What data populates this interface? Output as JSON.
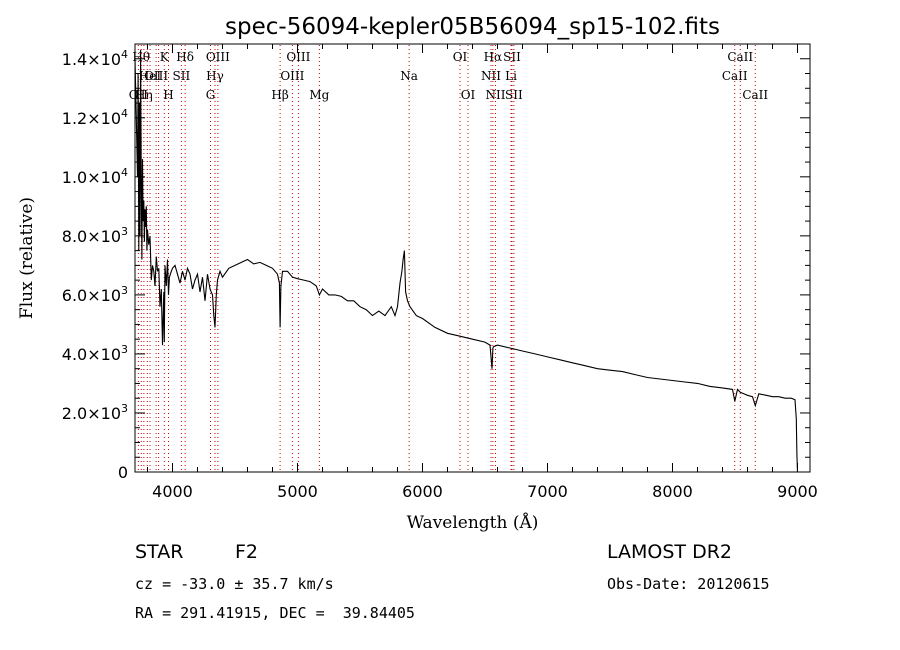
{
  "chart_data": {
    "type": "line",
    "title": "spec-56094-kepler05B56094_sp15-102.fits",
    "xlabel": "Wavelength (Å)",
    "ylabel": "Flux (relative)",
    "xlim": [
      3700,
      9100
    ],
    "ylim": [
      0,
      14500
    ],
    "x_ticks": [
      {
        "value": 4000,
        "label": "4000"
      },
      {
        "value": 5000,
        "label": "5000"
      },
      {
        "value": 6000,
        "label": "6000"
      },
      {
        "value": 7000,
        "label": "7000"
      },
      {
        "value": 8000,
        "label": "8000"
      },
      {
        "value": 9000,
        "label": "9000"
      }
    ],
    "y_ticks": [
      {
        "value": 0,
        "mant": "0",
        "exp": ""
      },
      {
        "value": 2000,
        "mant": "2.0×10",
        "exp": "3"
      },
      {
        "value": 4000,
        "mant": "4.0×10",
        "exp": "3"
      },
      {
        "value": 6000,
        "mant": "6.0×10",
        "exp": "3"
      },
      {
        "value": 8000,
        "mant": "8.0×10",
        "exp": "3"
      },
      {
        "value": 10000,
        "mant": "1.0×10",
        "exp": "4"
      },
      {
        "value": 12000,
        "mant": "1.2×10",
        "exp": "4"
      },
      {
        "value": 14000,
        "mant": "1.4×10",
        "exp": "4"
      }
    ],
    "line_color": "#000000",
    "marker_color": "#cc0000",
    "grid": false,
    "series": [
      {
        "x": [
          3700,
          3710,
          3720,
          3725,
          3730,
          3735,
          3740,
          3745,
          3750,
          3755,
          3760,
          3765,
          3770,
          3775,
          3780,
          3785,
          3790,
          3795,
          3800,
          3810,
          3820,
          3830,
          3840,
          3850,
          3860,
          3870,
          3880,
          3890,
          3900,
          3910,
          3920,
          3930,
          3934,
          3940,
          3950,
          3960,
          3968,
          3975,
          3990,
          4000,
          4020,
          4040,
          4060,
          4080,
          4100,
          4120,
          4140,
          4160,
          4180,
          4200,
          4220,
          4240,
          4260,
          4280,
          4300,
          4320,
          4330,
          4340,
          4350,
          4360,
          4380,
          4400,
          4450,
          4500,
          4550,
          4600,
          4650,
          4700,
          4750,
          4800,
          4840,
          4855,
          4861,
          4867,
          4880,
          4920,
          4960,
          5000,
          5050,
          5100,
          5150,
          5175,
          5200,
          5250,
          5300,
          5350,
          5400,
          5450,
          5500,
          5550,
          5600,
          5650,
          5700,
          5750,
          5780,
          5800,
          5820,
          5835,
          5845,
          5855,
          5865,
          5880,
          5900,
          5950,
          6000,
          6100,
          6200,
          6300,
          6400,
          6500,
          6540,
          6556,
          6563,
          6570,
          6600,
          6700,
          6800,
          6900,
          7000,
          7100,
          7200,
          7300,
          7400,
          7500,
          7600,
          7700,
          7800,
          7900,
          8000,
          8100,
          8200,
          8300,
          8400,
          8480,
          8498,
          8520,
          8542,
          8570,
          8600,
          8640,
          8662,
          8690,
          8750,
          8800,
          8850,
          8900,
          8950,
          8980,
          8990,
          8995,
          9000
        ],
        "y": [
          14000,
          12000,
          10000,
          13500,
          7500,
          12500,
          8000,
          14300,
          9500,
          7200,
          10600,
          8500,
          9200,
          7800,
          8900,
          8300,
          9000,
          7500,
          8200,
          7700,
          8000,
          6500,
          7000,
          6800,
          6300,
          7300,
          6800,
          6900,
          5600,
          6200,
          4300,
          6100,
          4400,
          7000,
          6300,
          7200,
          6000,
          6600,
          6800,
          6900,
          7000,
          6700,
          6400,
          6800,
          6500,
          6900,
          6700,
          6200,
          6500,
          6700,
          6100,
          6600,
          5800,
          6700,
          6200,
          6000,
          5300,
          4900,
          6000,
          6500,
          6800,
          6600,
          6900,
          7000,
          7100,
          7200,
          7050,
          7100,
          7000,
          6900,
          6700,
          6400,
          4900,
          6300,
          6800,
          6800,
          6600,
          6550,
          6500,
          6450,
          6300,
          6000,
          6200,
          6000,
          6000,
          5950,
          5800,
          5800,
          5600,
          5500,
          5300,
          5450,
          5300,
          5600,
          5300,
          5600,
          6400,
          6800,
          7200,
          7500,
          6100,
          5800,
          5600,
          5300,
          5200,
          4900,
          4700,
          4600,
          4500,
          4400,
          4300,
          3500,
          4200,
          4250,
          4300,
          4200,
          4100,
          4000,
          3900,
          3800,
          3700,
          3600,
          3500,
          3450,
          3400,
          3300,
          3200,
          3150,
          3100,
          3050,
          3000,
          2900,
          2850,
          2800,
          2400,
          2800,
          2700,
          2650,
          2600,
          2550,
          2250,
          2650,
          2600,
          2550,
          2550,
          2500,
          2500,
          2450,
          1800,
          600,
          0
        ]
      }
    ],
    "line_markers": [
      {
        "wl": 3727,
        "label": "OII",
        "row": 2
      },
      {
        "wl": 3750,
        "label": "Hθ",
        "row": 0
      },
      {
        "wl": 3771,
        "label": "Hη",
        "row": 2
      },
      {
        "wl": 3798,
        "label": "",
        "row": 0
      },
      {
        "wl": 3820,
        "label": "HeI",
        "row": 1
      },
      {
        "wl": 3869,
        "label": "OIII",
        "row": 1
      },
      {
        "wl": 3889,
        "label": "",
        "row": 0
      },
      {
        "wl": 3934,
        "label": "K",
        "row": 0
      },
      {
        "wl": 3968,
        "label": "H",
        "row": 2
      },
      {
        "wl": 4071,
        "label": "SII",
        "row": 1
      },
      {
        "wl": 4101,
        "label": "Hδ",
        "row": 0
      },
      {
        "wl": 4304,
        "label": "G",
        "row": 2
      },
      {
        "wl": 4340,
        "label": "Hγ",
        "row": 1
      },
      {
        "wl": 4363,
        "label": "OIII",
        "row": 0
      },
      {
        "wl": 4861,
        "label": "Hβ",
        "row": 2
      },
      {
        "wl": 4959,
        "label": "OIII",
        "row": 1
      },
      {
        "wl": 5007,
        "label": "OIII",
        "row": 0
      },
      {
        "wl": 5175,
        "label": "Mg",
        "row": 2
      },
      {
        "wl": 5893,
        "label": "Na",
        "row": 1
      },
      {
        "wl": 6300,
        "label": "OI",
        "row": 0
      },
      {
        "wl": 6364,
        "label": "OI",
        "row": 2
      },
      {
        "wl": 6548,
        "label": "NII",
        "row": 1
      },
      {
        "wl": 6563,
        "label": "Hα",
        "row": 0
      },
      {
        "wl": 6584,
        "label": "NII",
        "row": 2
      },
      {
        "wl": 6708,
        "label": "Li",
        "row": 1
      },
      {
        "wl": 6716,
        "label": "SII",
        "row": 0
      },
      {
        "wl": 6731,
        "label": "SII",
        "row": 2
      },
      {
        "wl": 8498,
        "label": "CaII",
        "row": 1
      },
      {
        "wl": 8542,
        "label": "CaII",
        "row": 0
      },
      {
        "wl": 8662,
        "label": "CaII",
        "row": 2
      }
    ]
  },
  "info": {
    "class": "STAR",
    "subclass": "F2",
    "survey": "LAMOST DR2",
    "cz": "cz = -33.0 ± 35.7 km/s",
    "obs_date": "Obs-Date: 20120615",
    "coords": "RA = 291.41915, DEC =  39.84405"
  }
}
